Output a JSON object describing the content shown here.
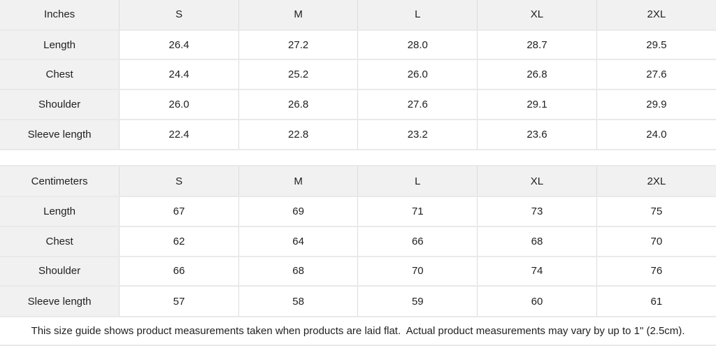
{
  "page": {
    "background": "#ffffff",
    "text_color": "#1f1f1f",
    "shaded_cell_bg": "#f1f1f1",
    "border_horizontal": "#e9e9e9",
    "border_vertical": "#dcdcdc"
  },
  "tables": [
    {
      "id": "inches",
      "unit_label": "Inches",
      "header": [
        "Inches",
        "S",
        "M",
        "L",
        "XL",
        "2XL"
      ],
      "rows": [
        {
          "label": "Length",
          "values": [
            "26.4",
            "27.2",
            "28.0",
            "28.7",
            "29.5"
          ]
        },
        {
          "label": "Chest",
          "values": [
            "24.4",
            "25.2",
            "26.0",
            "26.8",
            "27.6"
          ]
        },
        {
          "label": "Shoulder",
          "values": [
            "26.0",
            "26.8",
            "27.6",
            "29.1",
            "29.9"
          ]
        },
        {
          "label": "Sleeve length",
          "values": [
            "22.4",
            "22.8",
            "23.2",
            "23.6",
            "24.0"
          ]
        }
      ]
    },
    {
      "id": "centimeters",
      "unit_label": "Centimeters",
      "header": [
        "Centimeters",
        "S",
        "M",
        "L",
        "XL",
        "2XL"
      ],
      "rows": [
        {
          "label": "Length",
          "values": [
            "67",
            "69",
            "71",
            "73",
            "75"
          ]
        },
        {
          "label": "Chest",
          "values": [
            "62",
            "64",
            "66",
            "68",
            "70"
          ]
        },
        {
          "label": "Shoulder",
          "values": [
            "66",
            "68",
            "70",
            "74",
            "76"
          ]
        },
        {
          "label": "Sleeve length",
          "values": [
            "57",
            "58",
            "59",
            "60",
            "61"
          ]
        }
      ]
    }
  ],
  "footer": {
    "note": "This size guide shows product measurements taken when products are laid flat.  Actual product measurements may vary by up to 1\" (2.5cm)."
  }
}
